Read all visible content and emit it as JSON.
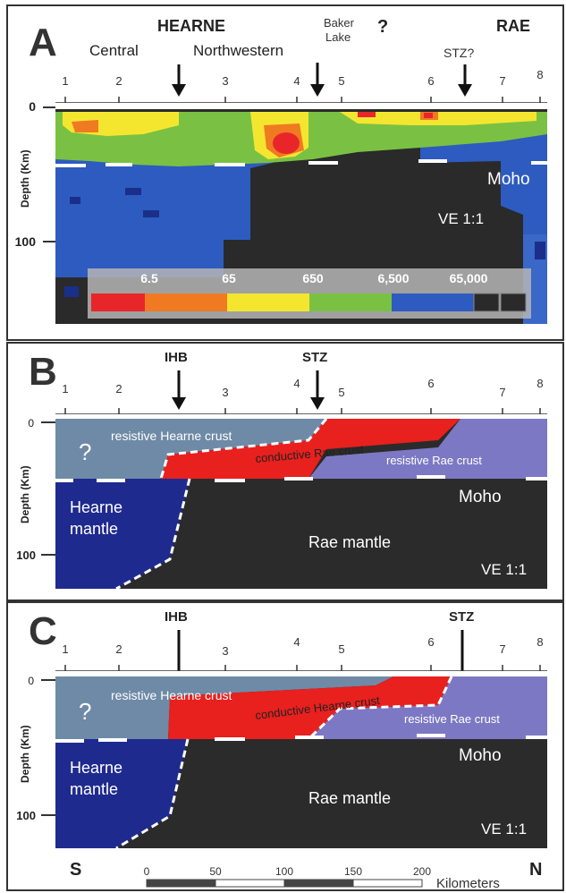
{
  "panel_a": {
    "letter": "A",
    "labels": {
      "hearne": "HEARNE",
      "central": "Central",
      "northwestern": "Northwestern",
      "baker_line1": "Baker",
      "baker_line2": "Lake",
      "question": "?",
      "rae": "RAE",
      "stz": "STZ?",
      "moho": "Moho",
      "ve": "VE 1:1"
    },
    "ticks": [
      "1",
      "2",
      "3",
      "4",
      "5",
      "6",
      "7",
      "8"
    ],
    "depth_ticks": [
      "0",
      "100"
    ],
    "depth_axis_label": "Depth (Km)",
    "colorbar": {
      "values": [
        "6.5",
        "65",
        "650",
        "6,500",
        "65,000"
      ],
      "colors": [
        "#e8262a",
        "#f07a22",
        "#f4e62f",
        "#7ac143",
        "#2e5bbf",
        "#2a2a2a"
      ]
    }
  },
  "panel_b": {
    "letter": "B",
    "labels": {
      "ihb": "IHB",
      "stz": "STZ",
      "question": "?",
      "resistive_hearne": "resistive Hearne crust",
      "conductive": "conductive Rae crust",
      "resistive_rae": "resistive Rae crust",
      "hearne_mantle_1": "Hearne",
      "hearne_mantle_2": "mantle",
      "rae_mantle": "Rae mantle",
      "moho": "Moho",
      "ve": "VE 1:1"
    },
    "ticks": [
      "1",
      "2",
      "3",
      "4",
      "5",
      "6",
      "7",
      "8"
    ],
    "depth_ticks": [
      "0",
      "100"
    ],
    "depth_axis_label": "Depth (Km)"
  },
  "panel_c": {
    "letter": "C",
    "labels": {
      "ihb": "IHB",
      "stz": "STZ",
      "question": "?",
      "resistive_hearne": "resistive Hearne crust",
      "conductive": "conductive Hearne crust",
      "resistive_rae": "resistive Rae crust",
      "hearne_mantle_1": "Hearne",
      "hearne_mantle_2": "mantle",
      "rae_mantle": "Rae mantle",
      "moho": "Moho",
      "ve": "VE 1:1"
    },
    "ticks": [
      "1",
      "2",
      "3",
      "4",
      "5",
      "6",
      "7",
      "8"
    ],
    "depth_ticks": [
      "0",
      "100"
    ],
    "depth_axis_label": "Depth (Km)"
  },
  "scale": {
    "south": "S",
    "north": "N",
    "values": [
      "0",
      "50",
      "100",
      "150",
      "200"
    ],
    "unit": "Kilometers"
  },
  "colors": {
    "mantle_dark": "#2b2b2b",
    "hearne_mantle": "#1f2a8f",
    "resistive_hearne": "#6e8aa6",
    "resistive_rae": "#7d78c4",
    "conductive": "#e8201e"
  }
}
